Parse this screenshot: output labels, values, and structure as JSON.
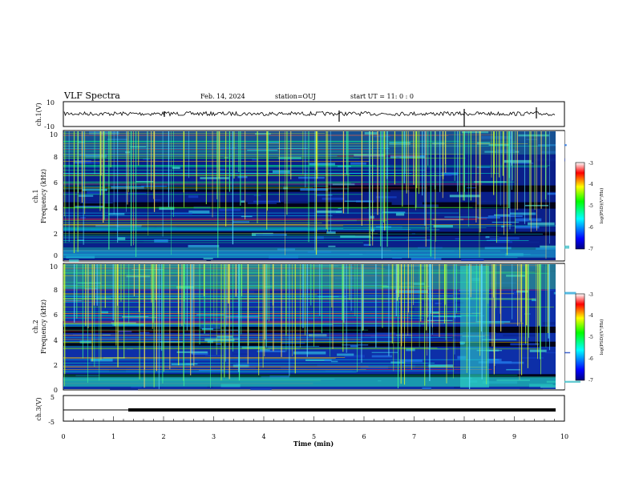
{
  "header": {
    "title": "VLF Spectra",
    "date": "Feb. 14, 2024",
    "station": "station=OUJ",
    "start": "start  UT =   11: 0  : 0"
  },
  "chart_data": [
    {
      "type": "line",
      "name": "ch1-waveform",
      "ylabel": "ch.1(V)",
      "ylim": [
        -10,
        10
      ],
      "yticks": [
        "10",
        "-10"
      ],
      "xlim": [
        0,
        10
      ]
    },
    {
      "type": "heatmap",
      "name": "ch1-spectrogram",
      "ylabel_line1": "ch.1",
      "ylabel_line2": "Frequency (kHz)",
      "ylim": [
        0,
        10
      ],
      "yticks": [
        "0",
        "2",
        "4",
        "6",
        "8",
        "10"
      ],
      "xlim": [
        0,
        10
      ],
      "colorbar": {
        "label": "log(PSD)(V²/Hz)",
        "range": [
          -7,
          -3
        ],
        "ticks": [
          "-3",
          "-4",
          "-5",
          "-6",
          "-7"
        ]
      }
    },
    {
      "type": "heatmap",
      "name": "ch2-spectrogram",
      "ylabel_line1": "ch.2",
      "ylabel_line2": "Frequency (kHz)",
      "ylim": [
        0,
        10
      ],
      "yticks": [
        "0",
        "2",
        "4",
        "6",
        "8",
        "10"
      ],
      "xlim": [
        0,
        10
      ],
      "colorbar": {
        "label": "log(PSD)(V²/Hz)",
        "range": [
          -7,
          -3
        ],
        "ticks": [
          "-3",
          "-4",
          "-5",
          "-6",
          "-7"
        ]
      }
    },
    {
      "type": "line",
      "name": "ch3-waveform",
      "ylabel": "ch.3(V)",
      "ylim": [
        -5,
        5
      ],
      "yticks": [
        "5",
        "-5"
      ],
      "xlim": [
        0,
        10
      ],
      "xlabel": "Time (min)",
      "xticks": [
        "0",
        "1",
        "2",
        "3",
        "4",
        "5",
        "6",
        "7",
        "8",
        "9",
        "10"
      ]
    }
  ]
}
